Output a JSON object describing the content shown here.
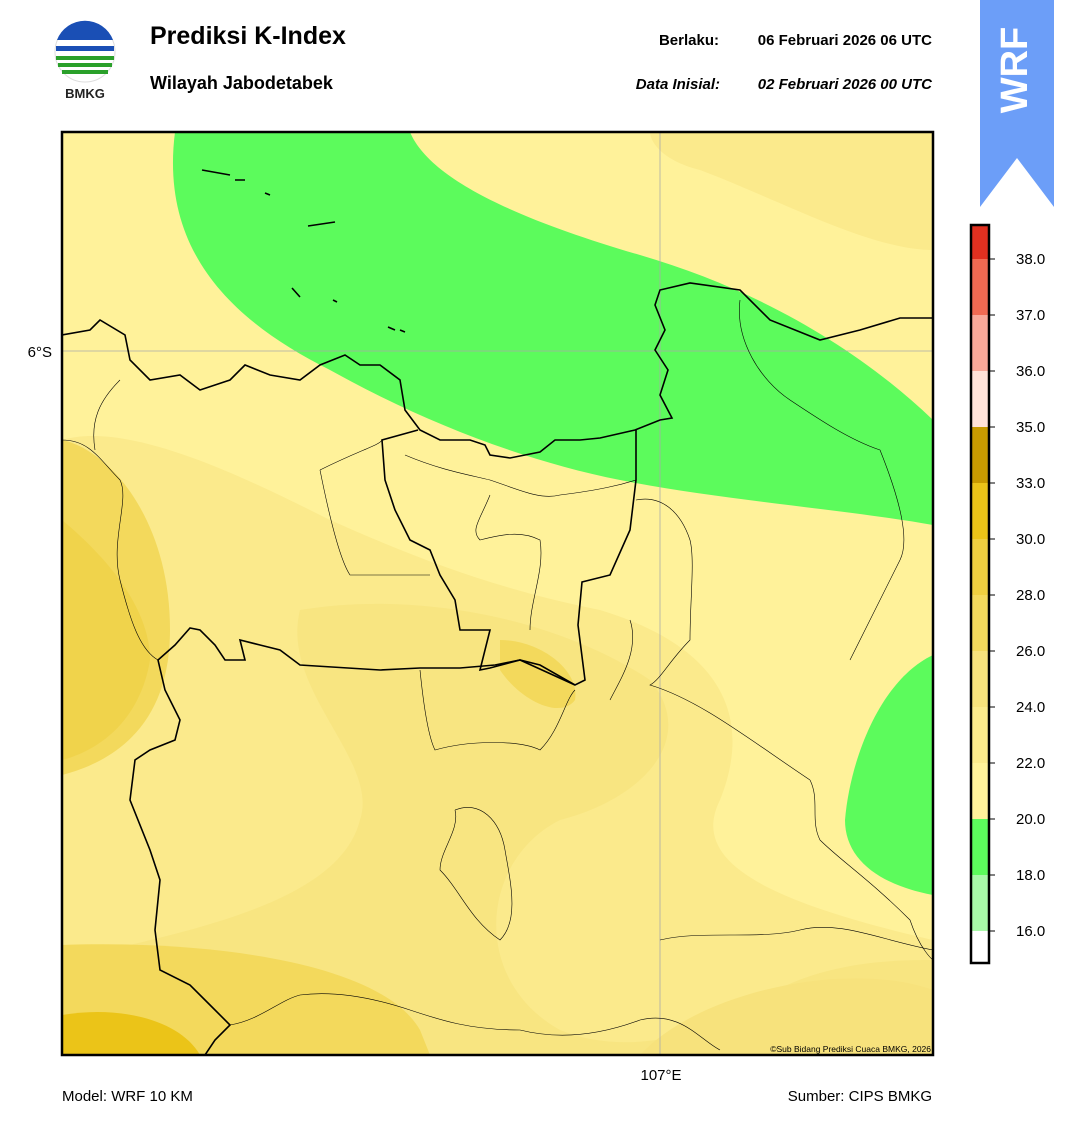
{
  "header": {
    "logo_text": "BMKG",
    "title": "Prediksi K-Index",
    "subtitle": "Wilayah Jabodetabek",
    "valid_label": "Berlaku:",
    "valid_time": "06 Februari 2026 06 UTC",
    "init_label": "Data Inisial:",
    "init_time": "02 Februari 2026 00 UTC",
    "model_tag": "WRF"
  },
  "map": {
    "lat_label": "6°S",
    "lon_label": "107°E",
    "copyright": "©Sub Bidang Prediksi Cuaca BMKG, 2026"
  },
  "colorbar": {
    "colors": [
      "#ffffff",
      "#a8f8a8",
      "#5cfb5c",
      "#fff29a",
      "#fbea8c",
      "#f7e27c",
      "#f3d95c",
      "#efcf40",
      "#ebc418",
      "#c89a00",
      "#ffe2d8",
      "#f8a898",
      "#f06a52",
      "#e03020"
    ],
    "ticks": [
      "16.0",
      "18.0",
      "20.0",
      "22.0",
      "24.0",
      "26.0",
      "28.0",
      "30.0",
      "33.0",
      "35.0",
      "36.0",
      "37.0",
      "38.0"
    ]
  },
  "footer": {
    "model": "Model: WRF 10 KM",
    "source": "Sumber: CIPS BMKG"
  }
}
